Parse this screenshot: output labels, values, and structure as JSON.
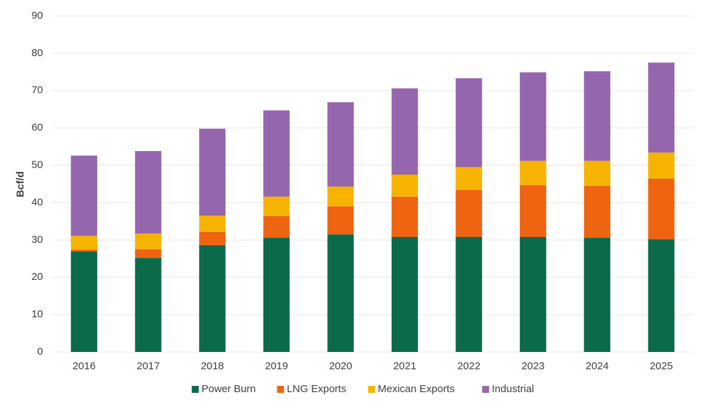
{
  "chart_data": {
    "type": "stacked_bar",
    "y_label": "Bcf/d",
    "categories": [
      "2016",
      "2017",
      "2018",
      "2019",
      "2020",
      "2021",
      "2022",
      "2023",
      "2024",
      "2025"
    ],
    "series": [
      {
        "name": "Power Burn",
        "color": "#0b6a4a",
        "values": [
          26.9,
          25.2,
          28.6,
          30.6,
          31.5,
          30.8,
          30.8,
          30.8,
          30.6,
          30.2
        ]
      },
      {
        "name": "LNG Exports",
        "color": "#ee6411",
        "values": [
          0.5,
          2.3,
          3.5,
          5.8,
          7.5,
          10.8,
          12.6,
          13.9,
          13.9,
          16.2
        ]
      },
      {
        "name": "Mexican Exports",
        "color": "#f6b400",
        "values": [
          3.7,
          4.2,
          4.4,
          5.2,
          5.3,
          5.9,
          6.1,
          6.5,
          6.7,
          7.0
        ]
      },
      {
        "name": "Industrial",
        "color": "#9466ad",
        "values": [
          21.5,
          22.1,
          23.3,
          23.1,
          22.6,
          23.1,
          23.8,
          23.7,
          24.0,
          24.1
        ]
      }
    ],
    "ylim": [
      0,
      90
    ],
    "yticks": [
      0,
      10,
      20,
      30,
      40,
      50,
      60,
      70,
      80,
      90
    ],
    "grid": true,
    "legend": "bottom"
  }
}
